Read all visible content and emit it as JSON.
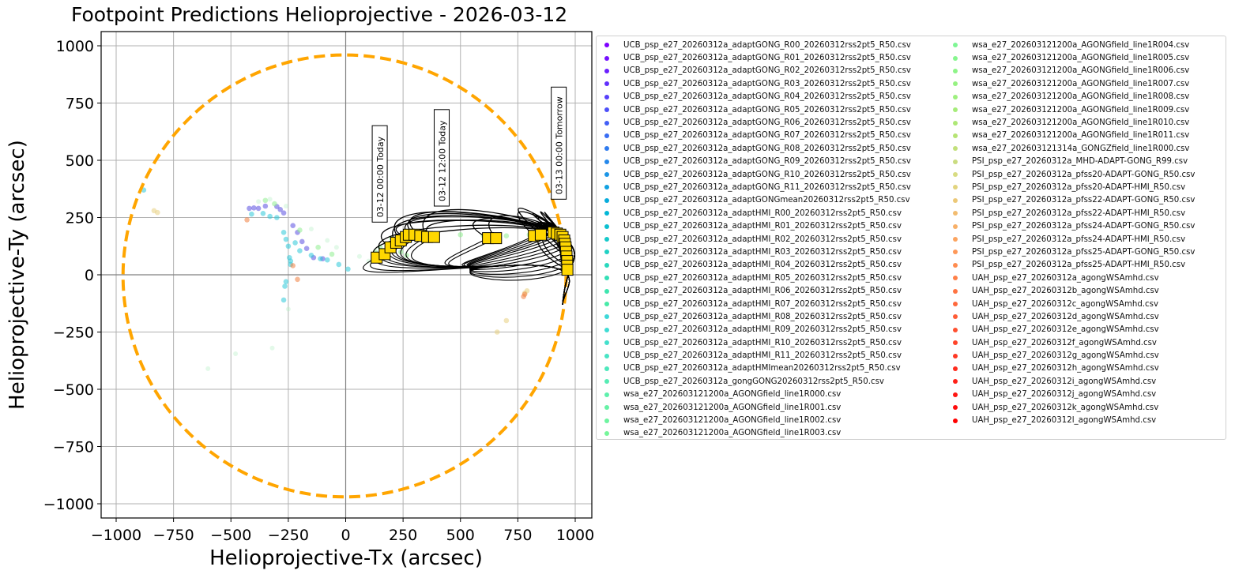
{
  "chart_data": {
    "type": "scatter",
    "title": "Footpoint Predictions Helioprojective - 2026-03-12",
    "xlabel": "Helioprojective-Tx (arcsec)",
    "ylabel": "Helioprojective-Ty (arcsec)",
    "xlim": [
      -1070,
      1070
    ],
    "ylim": [
      -1060,
      1060
    ],
    "grid": true,
    "legend_position": "outside right (2 columns)",
    "xticks": [
      -1000,
      -750,
      -500,
      -250,
      0,
      250,
      500,
      750,
      1000
    ],
    "yticks": [
      -1000,
      -750,
      -500,
      -250,
      0,
      250,
      500,
      750,
      1000
    ],
    "xtick_labels": [
      "−1000",
      "−750",
      "−500",
      "−250",
      "0",
      "250",
      "500",
      "750",
      "1000"
    ],
    "ytick_labels": [
      "−1000",
      "−750",
      "−500",
      "−250",
      "0",
      "250",
      "500",
      "750",
      "1000"
    ],
    "limb": {
      "radius": 965,
      "color": "#ffa500",
      "style": "dashed",
      "center": [
        -5,
        -5
      ]
    },
    "annotations": [
      {
        "text": "03-12 00:00 Today",
        "x": 150,
        "y": 230,
        "rotation": 90
      },
      {
        "text": "03-12 12:00 Today",
        "x": 420,
        "y": 300,
        "rotation": 90
      },
      {
        "text": "03-13 00:00 Tomorrow",
        "x": 930,
        "y": 330,
        "rotation": 90
      }
    ],
    "spacecraft_markers": {
      "color": "#ffd700",
      "shape": "square",
      "points": [
        [
          135,
          75
        ],
        [
          170,
          90
        ],
        [
          195,
          120
        ],
        [
          220,
          140
        ],
        [
          240,
          150
        ],
        [
          262,
          165
        ],
        [
          275,
          175
        ],
        [
          300,
          175
        ],
        [
          325,
          170
        ],
        [
          355,
          165
        ],
        [
          385,
          165
        ],
        [
          620,
          160
        ],
        [
          655,
          160
        ],
        [
          820,
          170
        ],
        [
          850,
          175
        ],
        [
          905,
          185
        ],
        [
          920,
          180
        ],
        [
          935,
          175
        ],
        [
          945,
          165
        ],
        [
          952,
          150
        ],
        [
          955,
          135
        ],
        [
          958,
          120
        ],
        [
          960,
          100
        ],
        [
          962,
          80
        ],
        [
          965,
          60
        ],
        [
          965,
          40
        ],
        [
          966,
          22
        ]
      ]
    },
    "field_line_color": "#000000",
    "footpoint_clusters": [
      {
        "group": "UCB adaptGONG",
        "color": "#5a4fe0",
        "points": [
          [
            -420,
            290
          ],
          [
            -400,
            292
          ],
          [
            -380,
            290
          ],
          [
            -350,
            300
          ],
          [
            -300,
            298
          ],
          [
            -285,
            285
          ],
          [
            -270,
            270
          ],
          [
            -230,
            215
          ],
          [
            -210,
            185
          ],
          [
            -190,
            145
          ],
          [
            -170,
            115
          ],
          [
            -140,
            75
          ],
          [
            -100,
            70
          ]
        ]
      },
      {
        "group": "UCB adaptHMI",
        "color": "#2ec8d8",
        "points": [
          [
            -410,
            265
          ],
          [
            -360,
            268
          ],
          [
            -330,
            255
          ],
          [
            -300,
            250
          ],
          [
            -220,
            140
          ],
          [
            -200,
            105
          ],
          [
            -150,
            85
          ],
          [
            -110,
            70
          ],
          [
            -80,
            65
          ],
          [
            -30,
            45
          ],
          [
            10,
            25
          ],
          [
            -270,
            185
          ],
          [
            -260,
            155
          ],
          [
            -250,
            125
          ],
          [
            -245,
            75
          ],
          [
            -240,
            60
          ],
          [
            -240,
            45
          ],
          [
            -260,
            -30
          ],
          [
            -265,
            -50
          ],
          [
            -270,
            -110
          ],
          [
            -880,
            370
          ]
        ]
      },
      {
        "group": "wsa AGONGfield",
        "color": "#90ee90",
        "points": [
          [
            200,
            160
          ],
          [
            300,
            165
          ],
          [
            400,
            170
          ],
          [
            500,
            175
          ],
          [
            600,
            170
          ],
          [
            700,
            170
          ],
          [
            800,
            175
          ],
          [
            150,
            120
          ],
          [
            130,
            100
          ],
          [
            -350,
            325
          ],
          [
            -310,
            310
          ],
          [
            -200,
            195
          ],
          [
            -120,
            120
          ],
          [
            -60,
            90
          ],
          [
            240,
            100
          ],
          [
            265,
            85
          ]
        ]
      },
      {
        "group": "PSI",
        "color": "#e8d080",
        "points": [
          [
            -820,
            272
          ],
          [
            -835,
            280
          ],
          [
            780,
            -80
          ],
          [
            790,
            -70
          ],
          [
            700,
            -200
          ],
          [
            660,
            -250
          ]
        ]
      },
      {
        "group": "UAH",
        "color": "#f08040",
        "points": [
          [
            780,
            -85
          ],
          [
            775,
            -95
          ],
          [
            -430,
            240
          ],
          [
            -230,
            40
          ],
          [
            -210,
            -20
          ]
        ]
      }
    ],
    "legend": [
      {
        "label": "UCB_psp_e27_20260312a_adaptGONG_R00_20260312rss2pt5_R50.csv",
        "color": "#7f00ff"
      },
      {
        "label": "UCB_psp_e27_20260312a_adaptGONG_R01_20260312rss2pt5_R50.csv",
        "color": "#7510ff"
      },
      {
        "label": "UCB_psp_e27_20260312a_adaptGONG_R02_20260312rss2pt5_R50.csv",
        "color": "#6b20fe"
      },
      {
        "label": "UCB_psp_e27_20260312a_adaptGONG_R03_20260312rss2pt5_R50.csv",
        "color": "#6130fd"
      },
      {
        "label": "UCB_psp_e27_20260312a_adaptGONG_R04_20260312rss2pt5_R50.csv",
        "color": "#5740fb"
      },
      {
        "label": "UCB_psp_e27_20260312a_adaptGONG_R05_20260312rss2pt5_R50.csv",
        "color": "#4d50f9"
      },
      {
        "label": "UCB_psp_e27_20260312a_adaptGONG_R06_20260312rss2pt5_R50.csv",
        "color": "#435ff6"
      },
      {
        "label": "UCB_psp_e27_20260312a_adaptGONG_R07_20260312rss2pt5_R50.csv",
        "color": "#396df3"
      },
      {
        "label": "UCB_psp_e27_20260312a_adaptGONG_R08_20260312rss2pt5_R50.csv",
        "color": "#2f7bef"
      },
      {
        "label": "UCB_psp_e27_20260312a_adaptGONG_R09_20260312rss2pt5_R50.csv",
        "color": "#2588eb"
      },
      {
        "label": "UCB_psp_e27_20260312a_adaptGONG_R10_20260312rss2pt5_R50.csv",
        "color": "#1b95e6"
      },
      {
        "label": "UCB_psp_e27_20260312a_adaptGONG_R11_20260312rss2pt5_R50.csv",
        "color": "#11a1e1"
      },
      {
        "label": "UCB_psp_e27_20260312a_adaptGONGmean20260312rss2pt5_R50.csv",
        "color": "#07acdc"
      },
      {
        "label": "UCB_psp_e27_20260312a_adaptHMI_R00_20260312rss2pt5_R50.csv",
        "color": "#02b7d6"
      },
      {
        "label": "UCB_psp_e27_20260312a_adaptHMI_R01_20260312rss2pt5_R50.csv",
        "color": "#0cc0d0"
      },
      {
        "label": "UCB_psp_e27_20260312a_adaptHMI_R02_20260312rss2pt5_R50.csv",
        "color": "#16c9ca"
      },
      {
        "label": "UCB_psp_e27_20260312a_adaptHMI_R03_20260312rss2pt5_R50.csv",
        "color": "#20d1c4"
      },
      {
        "label": "UCB_psp_e27_20260312a_adaptHMI_R04_20260312rss2pt5_R50.csv",
        "color": "#2ad8bd"
      },
      {
        "label": "UCB_psp_e27_20260312a_adaptHMI_R05_20260312rss2pt5_R50.csv",
        "color": "#34dfb6"
      },
      {
        "label": "UCB_psp_e27_20260312a_adaptHMI_R06_20260312rss2pt5_R50.csv",
        "color": "#3ee5af"
      },
      {
        "label": "UCB_psp_e27_20260312a_adaptHMI_R07_20260312rss2pt5_R50.csv",
        "color": "#48eaa8"
      },
      {
        "label": "UCB_psp_e27_20260312a_adaptHMI_R08_20260312rss2pt5_R50.csv",
        "color": "#3ed8d8"
      },
      {
        "label": "UCB_psp_e27_20260312a_adaptHMI_R09_20260312rss2pt5_R50.csv",
        "color": "#40dcd4"
      },
      {
        "label": "UCB_psp_e27_20260312a_adaptHMI_R10_20260312rss2pt5_R50.csv",
        "color": "#44e0cc"
      },
      {
        "label": "UCB_psp_e27_20260312a_adaptHMI_R11_20260312rss2pt5_R50.csv",
        "color": "#48e4c4"
      },
      {
        "label": "UCB_psp_e27_20260312a_adaptHMImean20260312rss2pt5_R50.csv",
        "color": "#4ee8bc"
      },
      {
        "label": "UCB_psp_e27_20260312a_gongGONG20260312rss2pt5_R50.csv",
        "color": "#56ecb4"
      },
      {
        "label": "wsa_e27_202603121200a_AGONGfield_line1R000.csv",
        "color": "#5ef0ac"
      },
      {
        "label": "wsa_e27_202603121200a_AGONGfield_line1R001.csv",
        "color": "#66f2a6"
      },
      {
        "label": "wsa_e27_202603121200a_AGONGfield_line1R002.csv",
        "color": "#6ef4a0"
      },
      {
        "label": "wsa_e27_202603121200a_AGONGfield_line1R003.csv",
        "color": "#76f69a"
      },
      {
        "label": "wsa_e27_202603121200a_AGONGfield_line1R004.csv",
        "color": "#7ef694"
      },
      {
        "label": "wsa_e27_202603121200a_AGONGfield_line1R005.csv",
        "color": "#86f68e"
      },
      {
        "label": "wsa_e27_202603121200a_AGONGfield_line1R006.csv",
        "color": "#8ef488"
      },
      {
        "label": "wsa_e27_202603121200a_AGONGfield_line1R007.csv",
        "color": "#96f282"
      },
      {
        "label": "wsa_e27_202603121200a_AGONGfield_line1R008.csv",
        "color": "#9ef07e"
      },
      {
        "label": "wsa_e27_202603121200a_AGONGfield_line1R009.csv",
        "color": "#a6ec7a"
      },
      {
        "label": "wsa_e27_202603121200a_AGONGfield_line1R010.csv",
        "color": "#aee876"
      },
      {
        "label": "wsa_e27_202603121200a_AGONGfield_line1R011.csv",
        "color": "#b6e474"
      },
      {
        "label": "wsa_e27_202603121314a_GONGZfield_line1R000.csv",
        "color": "#c2e07a"
      },
      {
        "label": "PSI_psp_e27_20260312a_MHD-ADAPT-GONG_R99.csv",
        "color": "#cadc80"
      },
      {
        "label": "PSI_psp_e27_20260312a_pfss20-ADAPT-GONG_R50.csv",
        "color": "#d8dc82"
      },
      {
        "label": "PSI_psp_e27_20260312a_pfss20-ADAPT-HMI_R50.csv",
        "color": "#e2d47e"
      },
      {
        "label": "PSI_psp_e27_20260312a_pfss22-ADAPT-GONG_R50.csv",
        "color": "#ecc878"
      },
      {
        "label": "PSI_psp_e27_20260312a_pfss22-ADAPT-HMI_R50.csv",
        "color": "#f2bc70"
      },
      {
        "label": "PSI_psp_e27_20260312a_pfss24-ADAPT-GONG_R50.csv",
        "color": "#f8b068"
      },
      {
        "label": "PSI_psp_e27_20260312a_pfss24-ADAPT-HMI_R50.csv",
        "color": "#fca460"
      },
      {
        "label": "PSI_psp_e27_20260312a_pfss25-ADAPT-GONG_R50.csv",
        "color": "#fe9858"
      },
      {
        "label": "PSI_psp_e27_20260312a_pfss25-ADAPT-HMI_R50.csv",
        "color": "#ff8c50"
      },
      {
        "label": "UAH_psp_e27_20260312a_agongWSAmhd.csv",
        "color": "#ff8048"
      },
      {
        "label": "UAH_psp_e27_20260312b_agongWSAmhd.csv",
        "color": "#ff7442"
      },
      {
        "label": "UAH_psp_e27_20260312c_agongWSAmhd.csv",
        "color": "#ff683c"
      },
      {
        "label": "UAH_psp_e27_20260312d_agongWSAmhd.csv",
        "color": "#ff5c36"
      },
      {
        "label": "UAH_psp_e27_20260312e_agongWSAmhd.csv",
        "color": "#ff5030"
      },
      {
        "label": "UAH_psp_e27_20260312f_agongWSAmhd.csv",
        "color": "#ff442a"
      },
      {
        "label": "UAH_psp_e27_20260312g_agongWSAmhd.csv",
        "color": "#ff3824"
      },
      {
        "label": "UAH_psp_e27_20260312h_agongWSAmhd.csv",
        "color": "#ff2c1e"
      },
      {
        "label": "UAH_psp_e27_20260312i_agongWSAmhd.csv",
        "color": "#ff2018"
      },
      {
        "label": "UAH_psp_e27_20260312j_agongWSAmhd.csv",
        "color": "#ff1612"
      },
      {
        "label": "UAH_psp_e27_20260312k_agongWSAmhd.csv",
        "color": "#ff0c0c"
      },
      {
        "label": "UAH_psp_e27_20260312l_agongWSAmhd.csv",
        "color": "#ff0000"
      }
    ]
  }
}
